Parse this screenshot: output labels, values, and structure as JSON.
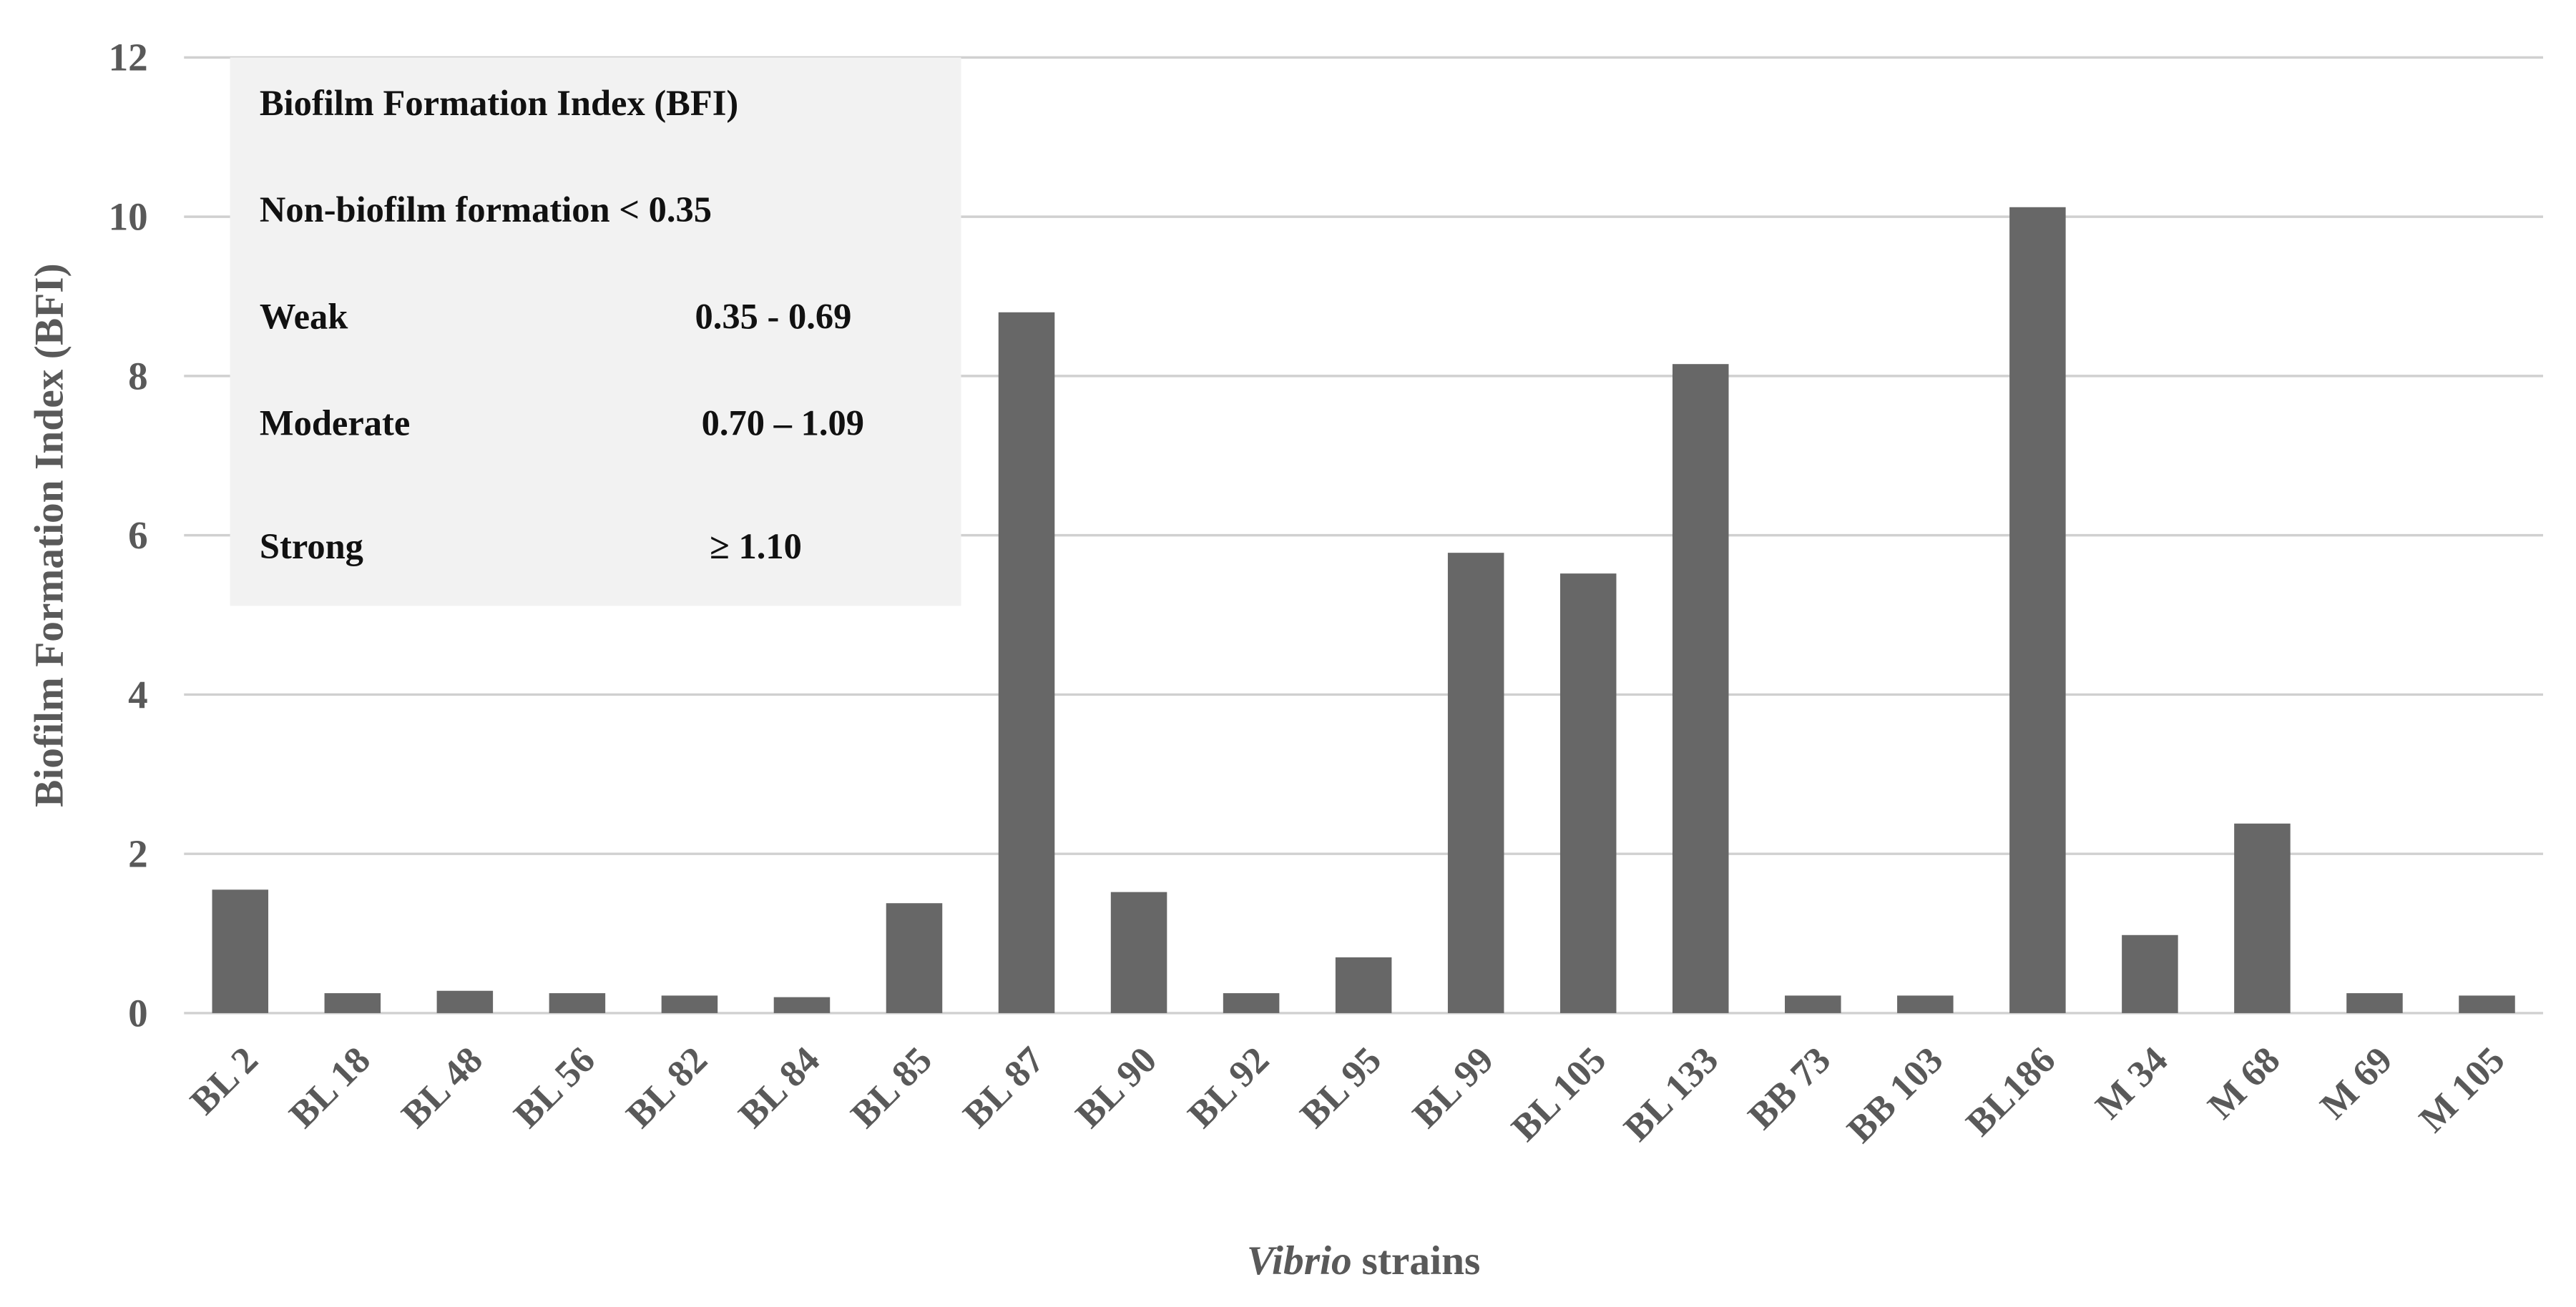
{
  "chart_data": {
    "type": "bar",
    "ylabel": "Biofilm Formation Index (BFI)",
    "xlabel": [
      "Vibrio",
      "strains"
    ],
    "categories": [
      "BL 2",
      "BL 18",
      "BL 48",
      "BL 56",
      "BL 82",
      "BL 84",
      "BL 85",
      "BL 87",
      "BL 90",
      "BL 92",
      "BL 95",
      "BL 99",
      "BL 105",
      "BL 133",
      "BB 73",
      "BB 103",
      "BL186",
      "M 34",
      "M 68",
      "M 69",
      "M 105"
    ],
    "values": [
      1.55,
      0.25,
      0.28,
      0.25,
      0.22,
      0.2,
      1.38,
      8.8,
      1.52,
      0.25,
      0.7,
      5.78,
      5.52,
      8.15,
      0.22,
      0.22,
      10.12,
      0.98,
      2.38,
      0.25,
      0.22
    ],
    "color": "#676767",
    "ylim": [
      0,
      12
    ],
    "yticks": [
      0,
      2,
      4,
      6,
      8,
      10,
      12
    ],
    "grid": true,
    "legend_box": {
      "title": "Biofilm Formation Index (BFI)",
      "rows": [
        [
          "Non-biofilm formation < 0.35"
        ],
        [
          "Weak",
          "0.35 - 0.69"
        ],
        [
          "Moderate",
          "0.70 – 1.09"
        ],
        [
          "Strong",
          "≥ 1.10"
        ]
      ]
    }
  }
}
